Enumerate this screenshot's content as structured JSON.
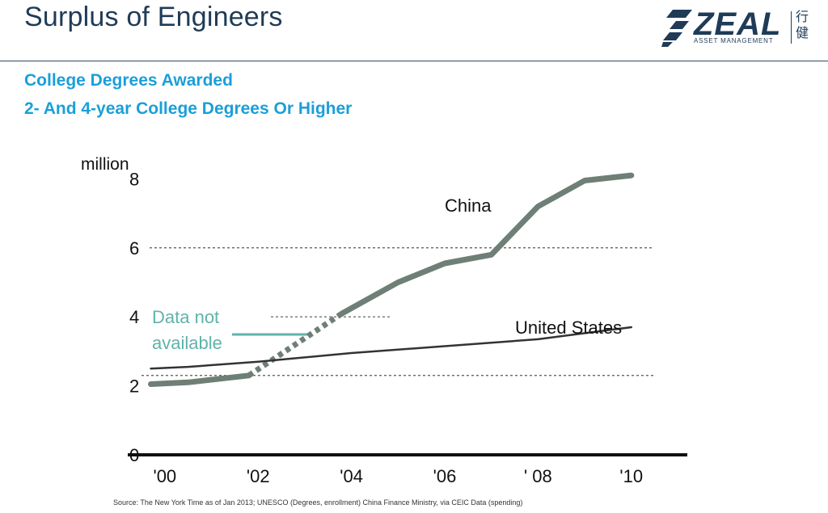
{
  "slide": {
    "title": "Surplus of Engineers",
    "subtitle_1": "College Degrees Awarded",
    "subtitle_2": "2- And 4-year College Degrees Or Higher",
    "source": "Source: The New York Time as of Jan 2013; UNESCO (Degrees, enrollment) China Finance Ministry, via CEIC Data (spending)"
  },
  "logo": {
    "word": "ZEAL",
    "sub": "ASSET MANAGEMENT",
    "cjk": "行健"
  },
  "chart_data": {
    "type": "line",
    "ylabel": "million",
    "ylim": [
      0,
      8.5
    ],
    "yticks": [
      0,
      2,
      4,
      6,
      8
    ],
    "gridlines": [
      2.3,
      4,
      6
    ],
    "x_ticks": [
      {
        "label": "'00",
        "x": 2000
      },
      {
        "label": "'02",
        "x": 2002
      },
      {
        "label": "'04",
        "x": 2004
      },
      {
        "label": "'06",
        "x": 2006
      },
      {
        "label": "' 08",
        "x": 2008
      },
      {
        "label": "'10",
        "x": 2010
      }
    ],
    "xlim": [
      1999.5,
      2011.2
    ],
    "annotation": {
      "line1": "Data not",
      "line2": "available",
      "color": "#5fb3a9"
    },
    "series": [
      {
        "name": "China",
        "color": "#6e7f76",
        "segments": [
          {
            "style": "solid",
            "points": [
              [
                1999.7,
                2.05
              ],
              [
                2000.5,
                2.1
              ],
              [
                2001.8,
                2.3
              ]
            ]
          },
          {
            "style": "dashed",
            "points": [
              [
                2001.8,
                2.3
              ],
              [
                2003.8,
                4.1
              ]
            ]
          },
          {
            "style": "solid",
            "points": [
              [
                2003.8,
                4.1
              ],
              [
                2005.0,
                5.0
              ],
              [
                2006.0,
                5.55
              ],
              [
                2007.0,
                5.8
              ],
              [
                2008.0,
                7.2
              ],
              [
                2009.0,
                7.95
              ],
              [
                2010.0,
                8.1
              ]
            ]
          }
        ]
      },
      {
        "name": "United States",
        "color": "#333333",
        "segments": [
          {
            "style": "solid",
            "points": [
              [
                1999.7,
                2.5
              ],
              [
                2000.5,
                2.55
              ],
              [
                2002.0,
                2.7
              ],
              [
                2004.0,
                2.95
              ],
              [
                2006.0,
                3.15
              ],
              [
                2008.0,
                3.35
              ],
              [
                2010.0,
                3.7
              ]
            ]
          }
        ]
      }
    ]
  }
}
